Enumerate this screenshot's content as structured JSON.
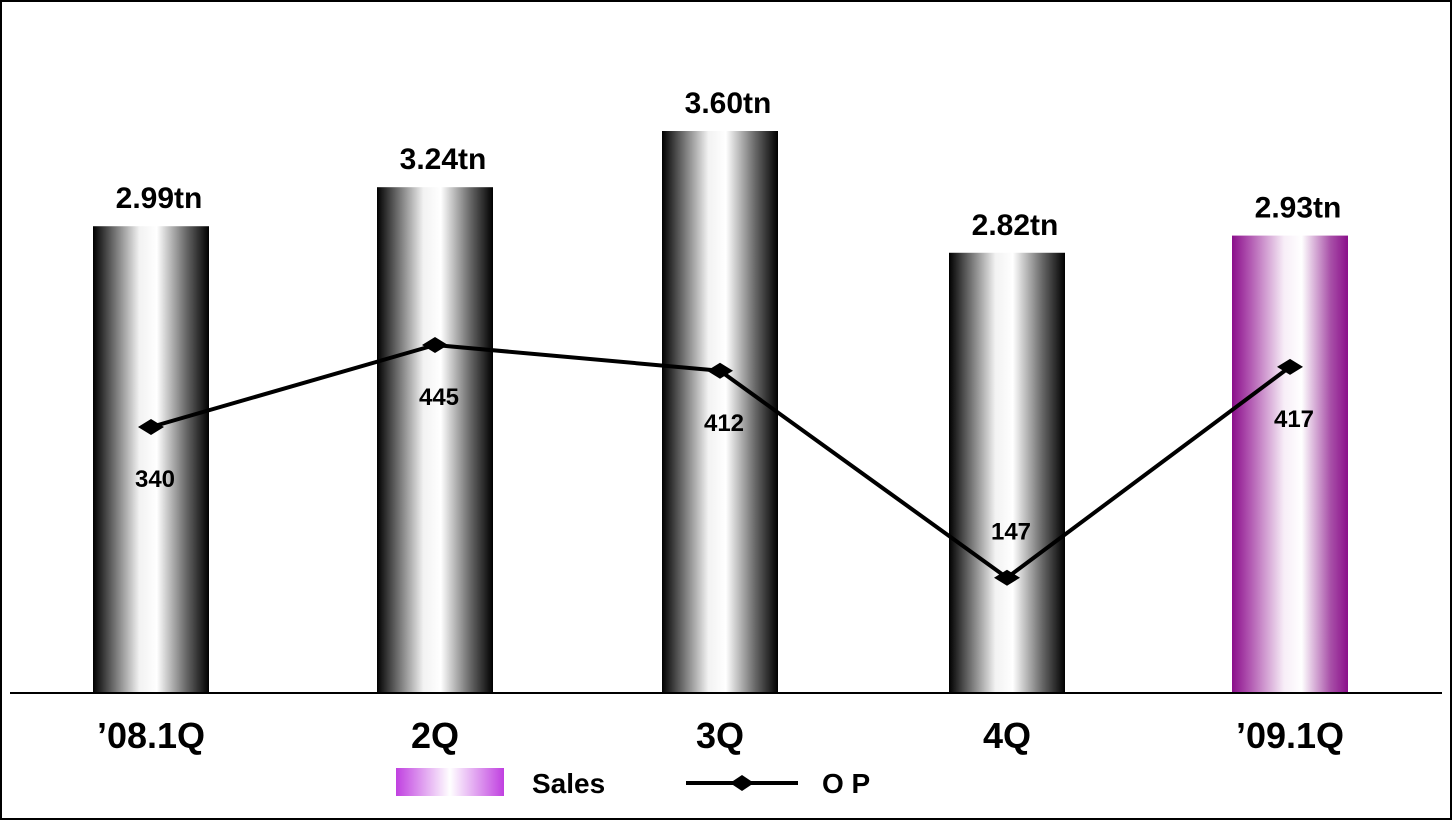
{
  "chart_data": {
    "type": "bar",
    "categories": [
      "’08.1Q",
      "2Q",
      "3Q",
      "4Q",
      "’09.1Q"
    ],
    "series": [
      {
        "name": "Sales",
        "type": "bar",
        "values": [
          2.99,
          3.24,
          3.6,
          2.82,
          2.93
        ],
        "value_labels": [
          "2.99tn",
          "3.24tn",
          "3.60tn",
          "2.82tn",
          "2.93tn"
        ],
        "highlight_index": 4,
        "highlight_color": "#9b1a9b",
        "color": "#000000"
      },
      {
        "name": "O P",
        "type": "line",
        "values": [
          340,
          445,
          412,
          147,
          417
        ],
        "value_labels": [
          "340",
          "445",
          "412",
          "147",
          "417"
        ],
        "color": "#000000"
      }
    ],
    "title": "",
    "xlabel": "",
    "ylabel": "",
    "sales_ylim": [
      0,
      3.6
    ],
    "op_ylim": [
      0,
      445
    ],
    "grid": false,
    "legend": "bottom-center",
    "legend_sales_color": "#c040e0"
  }
}
